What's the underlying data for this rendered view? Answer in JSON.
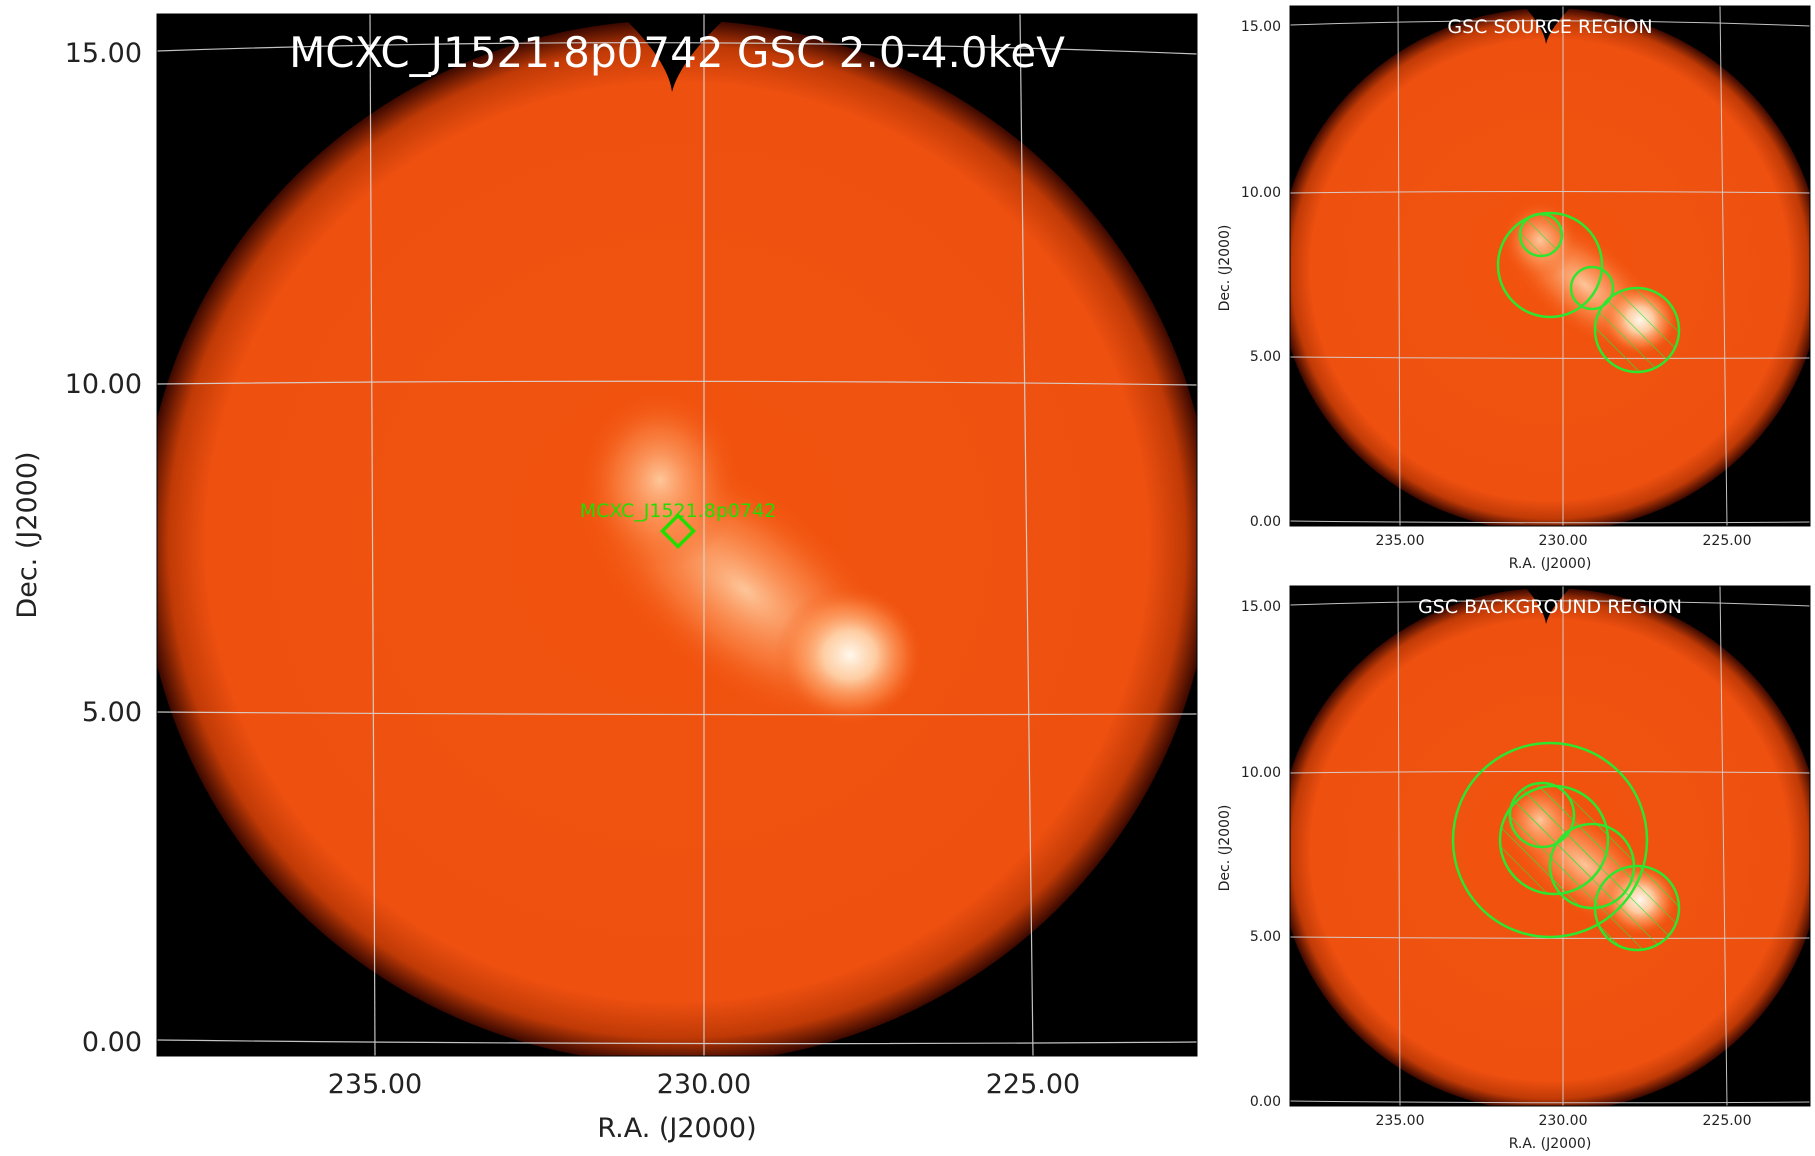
{
  "main": {
    "title": "MCXC_J1521.8p0742 GSC 2.0-4.0keV",
    "xlabel": "R.A. (J2000)",
    "ylabel": "Dec. (J2000)",
    "x_ticks": [
      "235.00",
      "230.00",
      "225.00"
    ],
    "y_ticks": [
      "15.00",
      "10.00",
      "5.00",
      "0.00"
    ],
    "source_label": "MCXC_J1521.8p0742",
    "marker_color": "#22dd00"
  },
  "source_panel": {
    "title": "GSC SOURCE REGION",
    "xlabel": "R.A. (J2000)",
    "ylabel": "Dec. (J2000)",
    "x_ticks": [
      "235.00",
      "230.00",
      "225.00"
    ],
    "y_ticks": [
      "15.00",
      "10.00",
      "5.00",
      "0.00"
    ]
  },
  "background_panel": {
    "title": "GSC BACKGROUND REGION",
    "xlabel": "R.A. (J2000)",
    "ylabel": "Dec. (J2000)",
    "x_ticks": [
      "235.00",
      "230.00",
      "225.00"
    ],
    "y_ticks": [
      "15.00",
      "10.00",
      "5.00",
      "0.00"
    ]
  },
  "colors": {
    "image_orange": "#f0500c",
    "image_black": "#000000",
    "bright_blob": "#fff0dc",
    "grid": "#d8d8d8",
    "region_green": "#2ee62e"
  }
}
